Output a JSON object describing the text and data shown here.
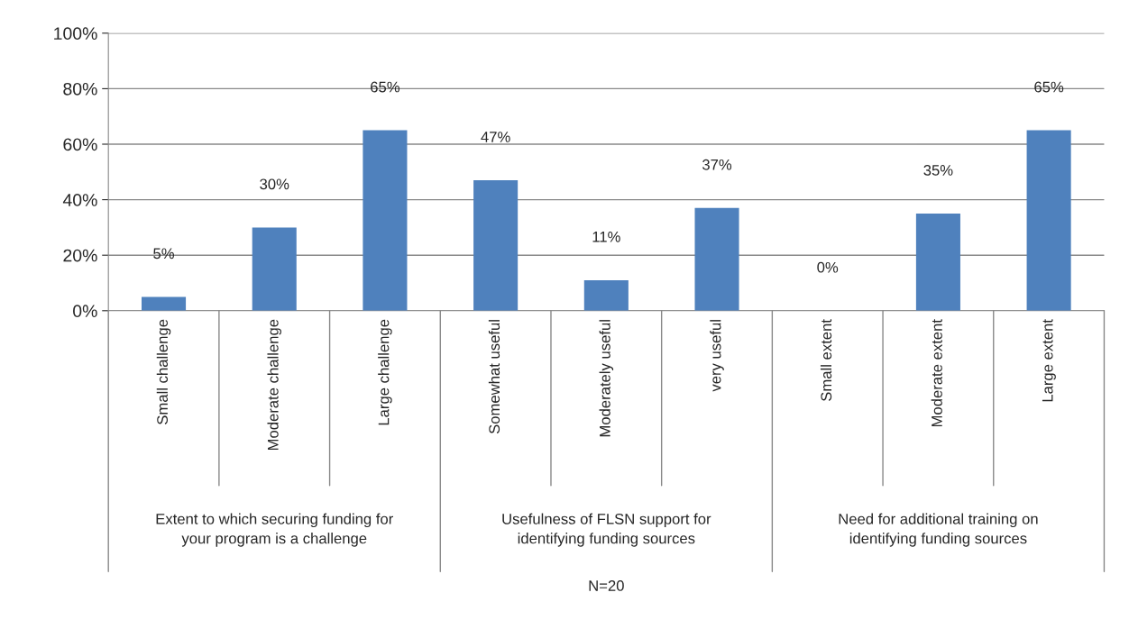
{
  "chart_data": {
    "type": "bar",
    "categories": [
      "Small challenge",
      "Moderate challenge",
      "Large challenge",
      "Somewhat useful",
      "Moderately useful",
      "very useful",
      "Small extent",
      "Moderate extent",
      "Large extent"
    ],
    "values": [
      5,
      30,
      65,
      47,
      11,
      37,
      0,
      35,
      65
    ],
    "color": "#4f81bd",
    "ylim": [
      0,
      100
    ],
    "yticks": [
      {
        "value": 0,
        "label": "0%"
      },
      {
        "value": 20,
        "label": "20%"
      },
      {
        "value": 40,
        "label": "40%"
      },
      {
        "value": 60,
        "label": "60%"
      },
      {
        "value": 80,
        "label": "80%"
      },
      {
        "value": 100,
        "label": "100%"
      }
    ],
    "value_labels": [
      "5%",
      "30%",
      "65%",
      "47%",
      "11%",
      "37%",
      "0%",
      "35%",
      "65%"
    ],
    "grid": "y",
    "legend": false,
    "annotations": [
      "Extent to which securing funding for\nyour program is a challenge",
      "Usefulness of FLSN support for\nidentifying funding sources",
      "Need for additional training on\nidentifying funding sources",
      "N=20"
    ]
  }
}
